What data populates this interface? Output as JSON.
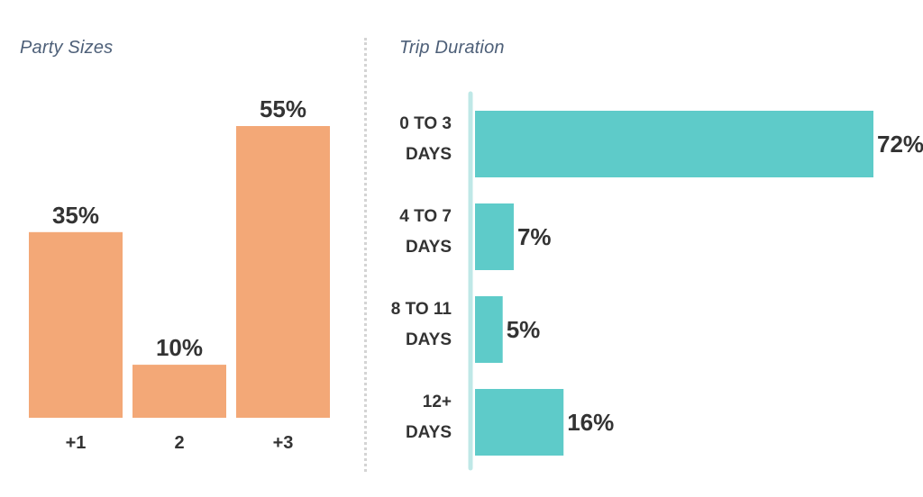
{
  "chart_data": [
    {
      "type": "bar",
      "title": "Party Sizes",
      "orientation": "vertical",
      "categories": [
        "+1",
        "2",
        "+3"
      ],
      "values": [
        35,
        10,
        55
      ],
      "value_labels": [
        "35%",
        "10%",
        "55%"
      ],
      "ylim": [
        0,
        55
      ],
      "grid": false,
      "color": "#f3a877"
    },
    {
      "type": "bar",
      "title": "Trip Duration",
      "orientation": "horizontal",
      "categories": [
        [
          "0 TO 3",
          "DAYS"
        ],
        [
          "4 TO 7",
          "DAYS"
        ],
        [
          "8 TO 11",
          "DAYS"
        ],
        [
          "12+",
          "DAYS"
        ]
      ],
      "values": [
        72,
        7,
        5,
        16
      ],
      "value_labels": [
        "72%",
        "7%",
        "5%",
        "16%"
      ],
      "xlim": [
        0,
        72
      ],
      "grid": false,
      "color": "#5ecbc9",
      "axis_color": "#bfe8e7"
    }
  ]
}
